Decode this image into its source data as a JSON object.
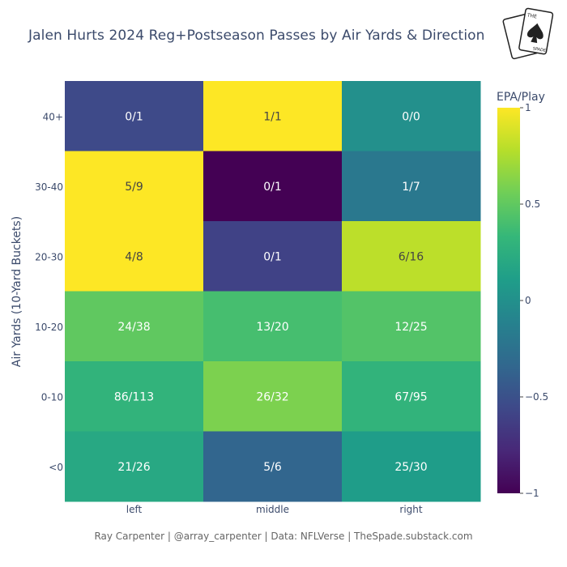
{
  "title": "Jalen Hurts 2024 Reg+Postseason Passes by Air Yards & Direction",
  "footer": "Ray Carpenter | @array_carpenter | Data: NFLVerse | TheSpade.substack.com",
  "logo": {
    "text_1": "THE",
    "text_2": "SPADE"
  },
  "chart_data": {
    "type": "heatmap",
    "title": "Jalen Hurts 2024 Reg+Postseason Passes by Air Yards & Direction",
    "xlabel": "",
    "ylabel": "Air Yards (10-Yard Buckets)",
    "x_categories": [
      "left",
      "middle",
      "right"
    ],
    "y_categories": [
      "40+",
      "30-40",
      "20-30",
      "10-20",
      "0-10",
      "<0"
    ],
    "labels": [
      [
        "0/1",
        "1/1",
        "0/0"
      ],
      [
        "5/9",
        "0/1",
        "1/7"
      ],
      [
        "4/8",
        "0/1",
        "6/16"
      ],
      [
        "24/38",
        "13/20",
        "12/25"
      ],
      [
        "86/113",
        "26/32",
        "67/95"
      ],
      [
        "21/26",
        "5/6",
        "25/30"
      ]
    ],
    "values": [
      [
        -0.55,
        1.0,
        0.0
      ],
      [
        1.0,
        -1.0,
        -0.2
      ],
      [
        1.0,
        -0.6,
        0.8
      ],
      [
        0.5,
        0.4,
        0.45
      ],
      [
        0.3,
        0.6,
        0.3
      ],
      [
        0.2,
        -0.35,
        0.1
      ]
    ],
    "colorscale": "Viridis",
    "colorbar": {
      "title": "EPA/Play",
      "range": [
        -1,
        1
      ],
      "ticks": [
        1,
        0.5,
        0,
        -0.5,
        -1
      ],
      "tick_labels": [
        "1",
        "0.5",
        "0",
        "−0.5",
        "−1"
      ]
    }
  }
}
